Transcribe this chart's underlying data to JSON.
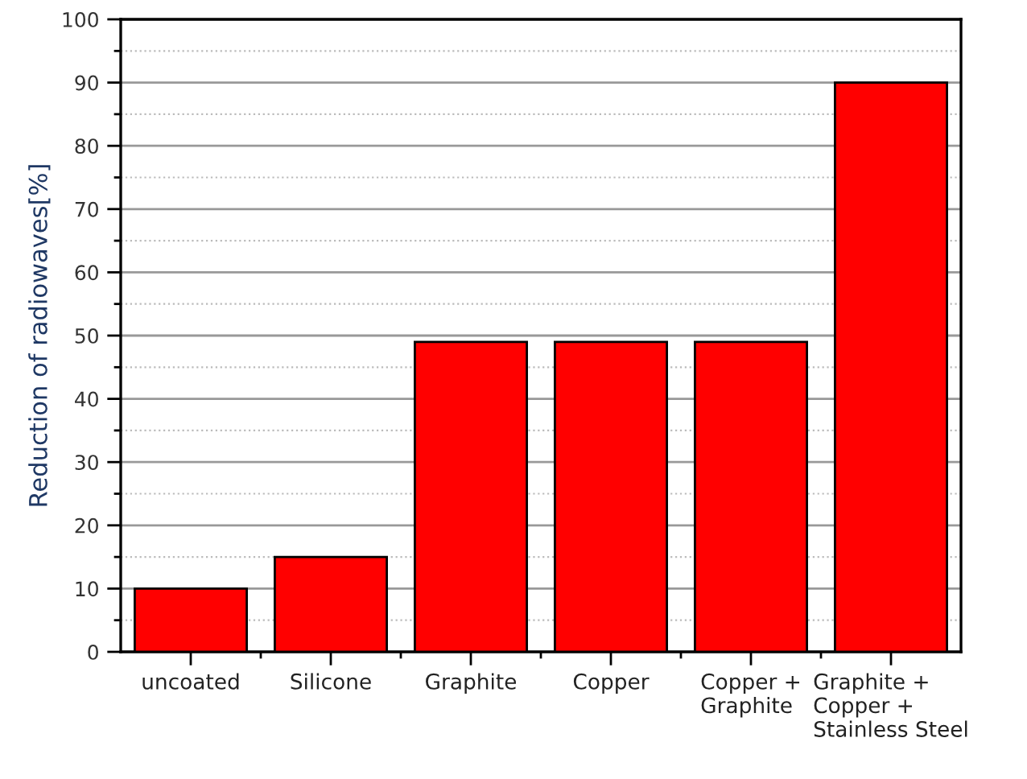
{
  "chart_data": {
    "type": "bar",
    "ylabel": "Reduction of radiowaves[%]",
    "categories": [
      "uncoated",
      "Silicone",
      "Graphite",
      "Copper",
      "Copper +\nGraphite",
      "Graphite +\nCopper +\nStainless Steel"
    ],
    "values": [
      10,
      15,
      49,
      49,
      49,
      90
    ],
    "color": "#ff0000",
    "ylim": [
      0,
      100
    ],
    "yticks": [
      0,
      10,
      20,
      30,
      40,
      50,
      60,
      70,
      80,
      90,
      100
    ],
    "grid": "y",
    "legend": false
  }
}
